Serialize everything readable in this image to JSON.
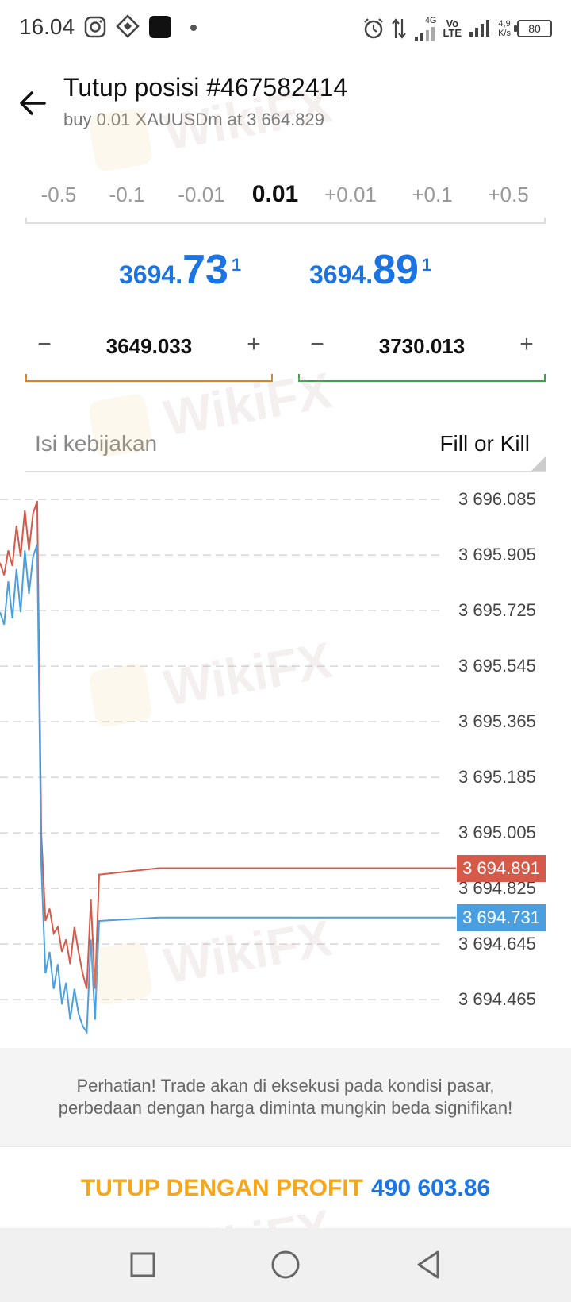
{
  "status_bar": {
    "time": "16.04",
    "network_4g": "4G",
    "volte_top": "Vo",
    "volte_bottom": "LTE",
    "speed_value": "4,9",
    "speed_unit": "K/s",
    "battery": "80"
  },
  "header": {
    "title": "Tutup posisi #467582414",
    "subtitle": "buy 0.01 XAUUSDm at 3 664.829"
  },
  "volume_options": [
    "-0.5",
    "-0.1",
    "-0.01",
    "0.01",
    "+0.01",
    "+0.1",
    "+0.5"
  ],
  "volume_selected": "0.01",
  "prices": {
    "bid": {
      "prefix": "3694.",
      "main": "73",
      "sup": "1"
    },
    "ask": {
      "prefix": "3694.",
      "main": "89",
      "sup": "1"
    }
  },
  "stop_loss": {
    "minus": "−",
    "value": "3649.033",
    "plus": "+"
  },
  "take_profit": {
    "minus": "−",
    "value": "3730.013",
    "plus": "+"
  },
  "fill_policy": {
    "label": "Isi kebijakan",
    "value": "Fill or Kill"
  },
  "chart_data": {
    "type": "line",
    "y_ticks": [
      "3 696.085",
      "3 695.905",
      "3 695.725",
      "3 695.545",
      "3 695.365",
      "3 695.185",
      "3 695.005",
      "3 694.825",
      "3 694.645",
      "3 694.465"
    ],
    "ylim": [
      3694.36,
      3696.16
    ],
    "grid": true,
    "series": [
      {
        "values": [
          3695.88,
          3695.84,
          3695.92,
          3695.87,
          3696.0,
          3695.9,
          3696.05,
          3695.92,
          3696.04,
          3696.08,
          3695.0,
          3694.72,
          3694.76,
          3694.68,
          3694.7,
          3694.62,
          3694.66,
          3694.58,
          3694.7,
          3694.62,
          3694.55,
          3694.5,
          3694.79,
          3694.5,
          3694.87,
          3694.891,
          3694.891,
          3694.891,
          3694.891,
          3694.891,
          3694.891
        ],
        "color": "#d65a4a"
      },
      {
        "values": [
          3695.72,
          3695.68,
          3695.82,
          3695.7,
          3695.86,
          3695.72,
          3695.92,
          3695.78,
          3695.9,
          3695.94,
          3694.9,
          3694.55,
          3694.62,
          3694.5,
          3694.58,
          3694.45,
          3694.52,
          3694.4,
          3694.5,
          3694.42,
          3694.38,
          3694.36,
          3694.66,
          3694.4,
          3694.72,
          3694.731,
          3694.731,
          3694.731,
          3694.731,
          3694.731,
          3694.731
        ],
        "color": "#4a9fe0"
      }
    ],
    "price_tags": [
      {
        "label": "3 694.891",
        "value": 3694.891,
        "color": "#d65a4a"
      },
      {
        "label": "3 694.731",
        "value": 3694.731,
        "color": "#4a9fe0"
      }
    ]
  },
  "warning": {
    "line1": "Perhatian! Trade akan di eksekusi pada kondisi pasar,",
    "line2": "perbedaan dengan harga diminta mungkin beda signifikan!"
  },
  "close_button": {
    "label": "TUTUP DENGAN PROFIT",
    "amount": "490 603.86"
  },
  "watermark": "WikiFX"
}
